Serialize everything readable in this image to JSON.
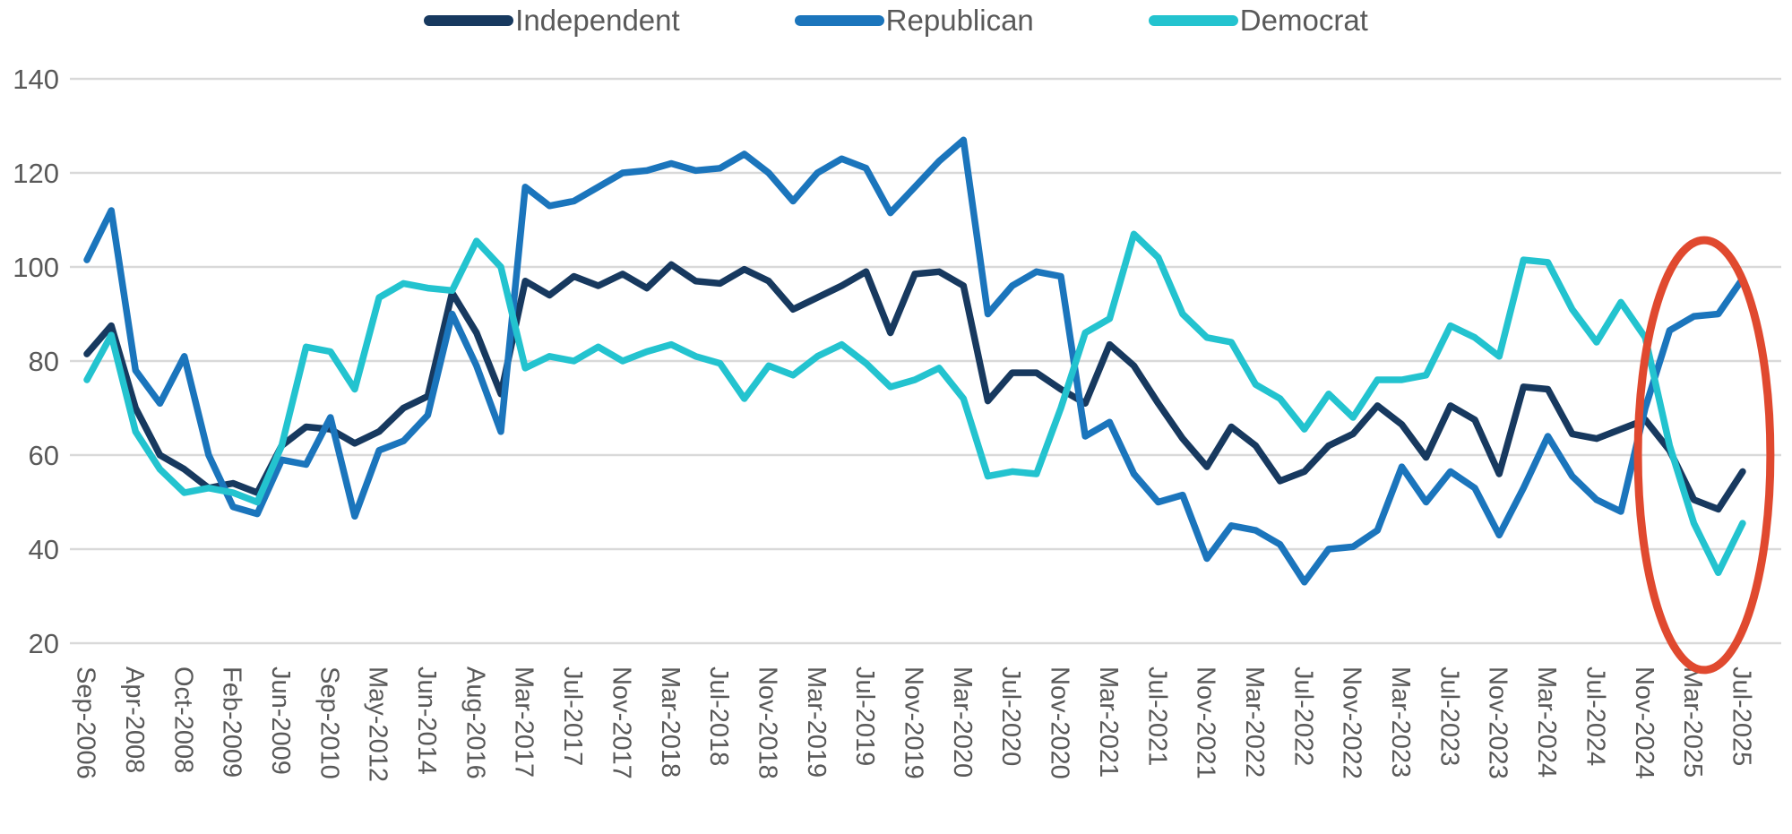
{
  "chart_data": {
    "type": "line",
    "title": "",
    "xlabel": "",
    "ylabel": "",
    "grid": "horizontal",
    "legend_position": "top-center",
    "grid_color": "#d9d9d9",
    "axis_label_color": "#595959",
    "y_axis": {
      "min": 20,
      "max": 140,
      "step": 20,
      "ticks": [
        140,
        120,
        100,
        80,
        60,
        40,
        20
      ]
    },
    "x_tick_labels": [
      "Sep-2006",
      "Apr-2008",
      "Oct-2008",
      "Feb-2009",
      "Jun-2009",
      "Sep-2010",
      "May-2012",
      "Jun-2014",
      "Aug-2016",
      "Mar-2017",
      "Jul-2017",
      "Nov-2017",
      "Mar-2018",
      "Jul-2018",
      "Nov-2018",
      "Mar-2019",
      "Jul-2019",
      "Nov-2019",
      "Mar-2020",
      "Jul-2020",
      "Nov-2020",
      "Mar-2021",
      "Jul-2021",
      "Nov-2021",
      "Mar-2022",
      "Jul-2022",
      "Nov-2022",
      "Mar-2023",
      "Jul-2023",
      "Nov-2023",
      "Mar-2024",
      "Jul-2024",
      "Nov-2024",
      "Mar-2025",
      "Jul-2025"
    ],
    "points_per_tick_interval": 2,
    "series": [
      {
        "name": "Independent",
        "color": "#17395F",
        "values": [
          81.5,
          87.5,
          70,
          60,
          57,
          53,
          54,
          52,
          62,
          66,
          65.5,
          62.5,
          65,
          70,
          72.5,
          94.5,
          86,
          73,
          97,
          94,
          98,
          96,
          98.5,
          95.5,
          100.5,
          97,
          96.5,
          99.5,
          97,
          91,
          93.5,
          96,
          99,
          86,
          98.5,
          99,
          96,
          71.5,
          77.5,
          77.5,
          74,
          71,
          83.5,
          79,
          71,
          63.5,
          57.5,
          66,
          62,
          54.5,
          56.5,
          62,
          64.5,
          70.5,
          66.5,
          59.5,
          70.5,
          67.5,
          56,
          74.5,
          74,
          64.5,
          63.5,
          65.5,
          67.5,
          61,
          50.5,
          48.5,
          56.5
        ]
      },
      {
        "name": "Republican",
        "color": "#1B75BC",
        "values": [
          101.5,
          112,
          78,
          71,
          81,
          60,
          49,
          47.5,
          59,
          58,
          68,
          47,
          61,
          63,
          68.5,
          90,
          79,
          65,
          117,
          113,
          114,
          117,
          120,
          120.5,
          122,
          120.5,
          121,
          124,
          120,
          114,
          120,
          123,
          121,
          111.5,
          117,
          122.5,
          127,
          90,
          96,
          99,
          98,
          64,
          67,
          56,
          50,
          51.5,
          38,
          45,
          44,
          41,
          33,
          40,
          40.5,
          44,
          57.5,
          50,
          56.5,
          53,
          43,
          53,
          64,
          55.5,
          50.5,
          48,
          70,
          86.5,
          89.5,
          90,
          97.5
        ]
      },
      {
        "name": "Democrat",
        "color": "#23C3CF",
        "values": [
          76,
          85.5,
          65,
          57,
          52,
          53,
          52,
          50,
          62,
          83,
          82,
          74,
          93.5,
          96.5,
          95.5,
          95,
          105.5,
          100,
          78.5,
          81,
          80,
          83,
          80,
          82,
          83.5,
          81,
          79.5,
          72,
          79,
          77,
          81,
          83.5,
          79.5,
          74.5,
          76,
          78.5,
          72,
          55.5,
          56.5,
          56,
          70,
          86,
          89,
          107,
          102,
          90,
          85,
          84,
          75,
          72,
          65.5,
          73,
          68,
          76,
          76,
          77,
          87.5,
          85,
          81,
          101.5,
          101,
          91,
          84,
          92.5,
          85,
          62,
          45.5,
          35,
          45.5
        ]
      }
    ],
    "annotation": {
      "shape": "ellipse",
      "stroke": "#E0492F",
      "stroke_width": 9,
      "center_tick": 33.21,
      "center_value": 60,
      "radius_ticks": 1.36,
      "radius_value": 45.7,
      "highlights": "Post-Nov-2024 divergence: Republican rising, Independent and Democrat falling"
    }
  }
}
